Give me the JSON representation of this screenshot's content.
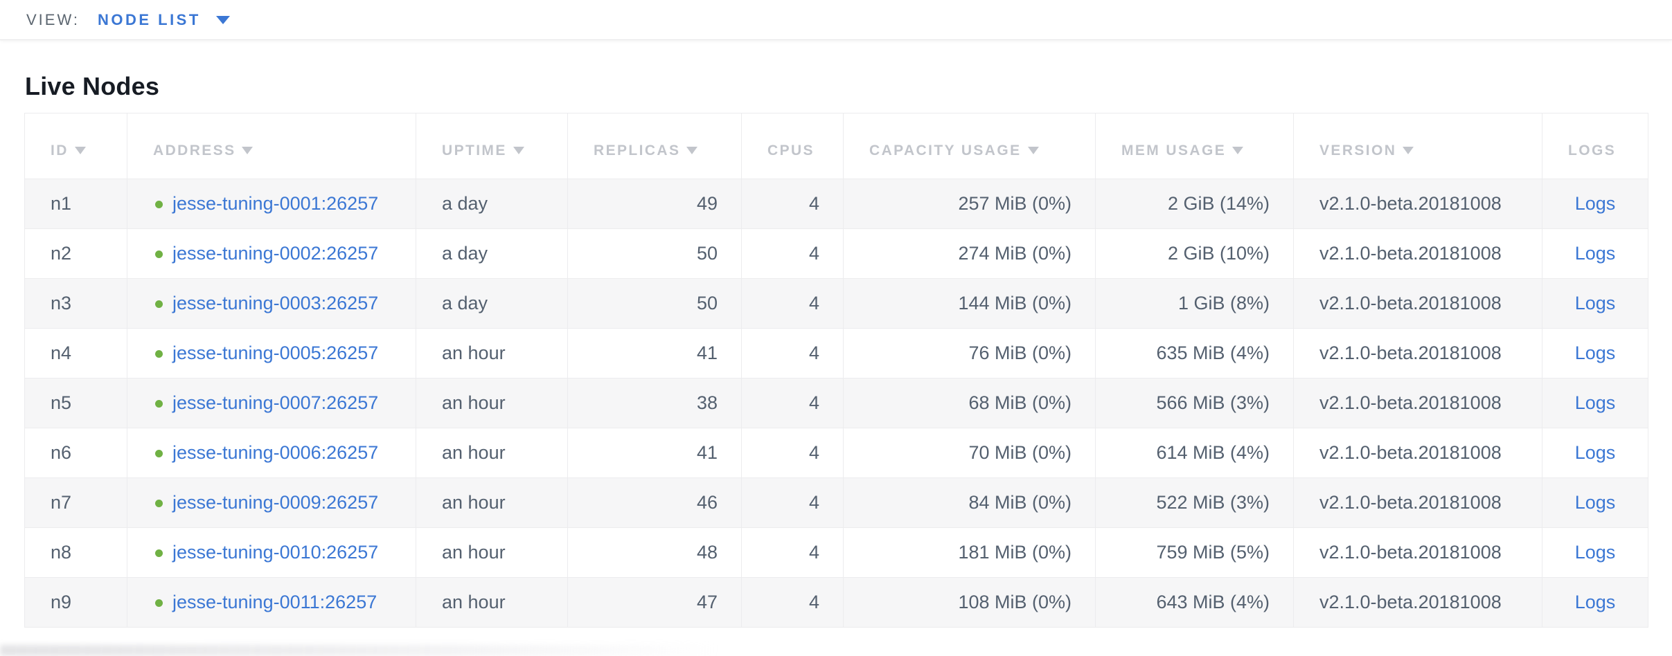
{
  "view_bar": {
    "label": "VIEW:",
    "selected": "NODE LIST"
  },
  "page": {
    "title": "Live Nodes"
  },
  "colors": {
    "accent_blue": "#3b77d4",
    "link_blue": "#3b77d4",
    "status_live_green": "#70b144",
    "header_text_gray": "#c2c5cb",
    "cell_text": "#54606f",
    "row_alt_bg": "#f6f6f7",
    "border": "#ececee"
  },
  "table": {
    "columns": [
      {
        "key": "id",
        "label": "ID",
        "sortable": true
      },
      {
        "key": "address",
        "label": "ADDRESS",
        "sortable": true
      },
      {
        "key": "uptime",
        "label": "UPTIME",
        "sortable": true
      },
      {
        "key": "replicas",
        "label": "REPLICAS",
        "sortable": true
      },
      {
        "key": "cpus",
        "label": "CPUS",
        "sortable": false
      },
      {
        "key": "capacity",
        "label": "CAPACITY USAGE",
        "sortable": true
      },
      {
        "key": "mem",
        "label": "MEM USAGE",
        "sortable": true
      },
      {
        "key": "version",
        "label": "VERSION",
        "sortable": true
      },
      {
        "key": "logs",
        "label": "LOGS",
        "sortable": false
      }
    ],
    "rows": [
      {
        "id": "n1",
        "status": "live",
        "address": "jesse-tuning-0001:26257",
        "uptime": "a day",
        "replicas": "49",
        "cpus": "4",
        "capacity": "257 MiB (0%)",
        "mem": "2 GiB (14%)",
        "version": "v2.1.0-beta.20181008",
        "logs": "Logs"
      },
      {
        "id": "n2",
        "status": "live",
        "address": "jesse-tuning-0002:26257",
        "uptime": "a day",
        "replicas": "50",
        "cpus": "4",
        "capacity": "274 MiB (0%)",
        "mem": "2 GiB (10%)",
        "version": "v2.1.0-beta.20181008",
        "logs": "Logs"
      },
      {
        "id": "n3",
        "status": "live",
        "address": "jesse-tuning-0003:26257",
        "uptime": "a day",
        "replicas": "50",
        "cpus": "4",
        "capacity": "144 MiB (0%)",
        "mem": "1 GiB (8%)",
        "version": "v2.1.0-beta.20181008",
        "logs": "Logs"
      },
      {
        "id": "n4",
        "status": "live",
        "address": "jesse-tuning-0005:26257",
        "uptime": "an hour",
        "replicas": "41",
        "cpus": "4",
        "capacity": "76 MiB (0%)",
        "mem": "635 MiB (4%)",
        "version": "v2.1.0-beta.20181008",
        "logs": "Logs"
      },
      {
        "id": "n5",
        "status": "live",
        "address": "jesse-tuning-0007:26257",
        "uptime": "an hour",
        "replicas": "38",
        "cpus": "4",
        "capacity": "68 MiB (0%)",
        "mem": "566 MiB (3%)",
        "version": "v2.1.0-beta.20181008",
        "logs": "Logs"
      },
      {
        "id": "n6",
        "status": "live",
        "address": "jesse-tuning-0006:26257",
        "uptime": "an hour",
        "replicas": "41",
        "cpus": "4",
        "capacity": "70 MiB (0%)",
        "mem": "614 MiB (4%)",
        "version": "v2.1.0-beta.20181008",
        "logs": "Logs"
      },
      {
        "id": "n7",
        "status": "live",
        "address": "jesse-tuning-0009:26257",
        "uptime": "an hour",
        "replicas": "46",
        "cpus": "4",
        "capacity": "84 MiB (0%)",
        "mem": "522 MiB (3%)",
        "version": "v2.1.0-beta.20181008",
        "logs": "Logs"
      },
      {
        "id": "n8",
        "status": "live",
        "address": "jesse-tuning-0010:26257",
        "uptime": "an hour",
        "replicas": "48",
        "cpus": "4",
        "capacity": "181 MiB (0%)",
        "mem": "759 MiB (5%)",
        "version": "v2.1.0-beta.20181008",
        "logs": "Logs"
      },
      {
        "id": "n9",
        "status": "live",
        "address": "jesse-tuning-0011:26257",
        "uptime": "an hour",
        "replicas": "47",
        "cpus": "4",
        "capacity": "108 MiB (0%)",
        "mem": "643 MiB (4%)",
        "version": "v2.1.0-beta.20181008",
        "logs": "Logs"
      }
    ]
  }
}
